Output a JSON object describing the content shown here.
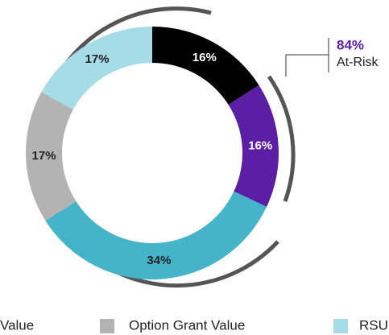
{
  "chart_data": {
    "type": "donut",
    "values": [
      16,
      16,
      34,
      17,
      17
    ],
    "value_labels": [
      "16%",
      "16%",
      "34%",
      "17%",
      "17%"
    ],
    "colors": [
      "#000000",
      "#5b1fa6",
      "#45b3c8",
      "#b3b3b3",
      "#a6dce6"
    ],
    "label_colors": [
      "#ffffff",
      "#ffffff",
      "#222222",
      "#222222",
      "#222222"
    ],
    "annotation": {
      "value": "84%",
      "text": "At-Risk",
      "color": "#5b1fa6"
    },
    "legend": [
      {
        "name": "Value"
      },
      {
        "name": "Option Grant Value",
        "color": "#b3b3b3"
      },
      {
        "name": "RSU",
        "color": "#a6dce6"
      }
    ]
  }
}
